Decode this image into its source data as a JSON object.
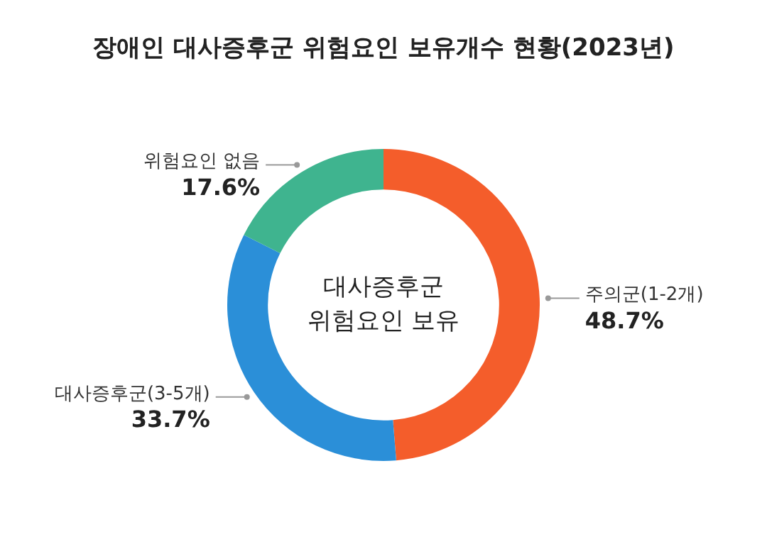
{
  "chart_data": {
    "type": "donut",
    "title": "장애인 대사증후군 위험요인 보유개수 현황(2023년)",
    "categories": [
      "주의군(1-2개)",
      "대사증후군(3-5개)",
      "위험요인 없음"
    ],
    "values": [
      48.7,
      33.7,
      17.6
    ],
    "value_labels": [
      "48.7%",
      "33.7%",
      "17.6%"
    ],
    "colors": [
      "#f45d2b",
      "#2b8fd8",
      "#3fb48f"
    ],
    "annotations": [
      "대사증후군\n위험요인 보유"
    ],
    "legend": false
  }
}
